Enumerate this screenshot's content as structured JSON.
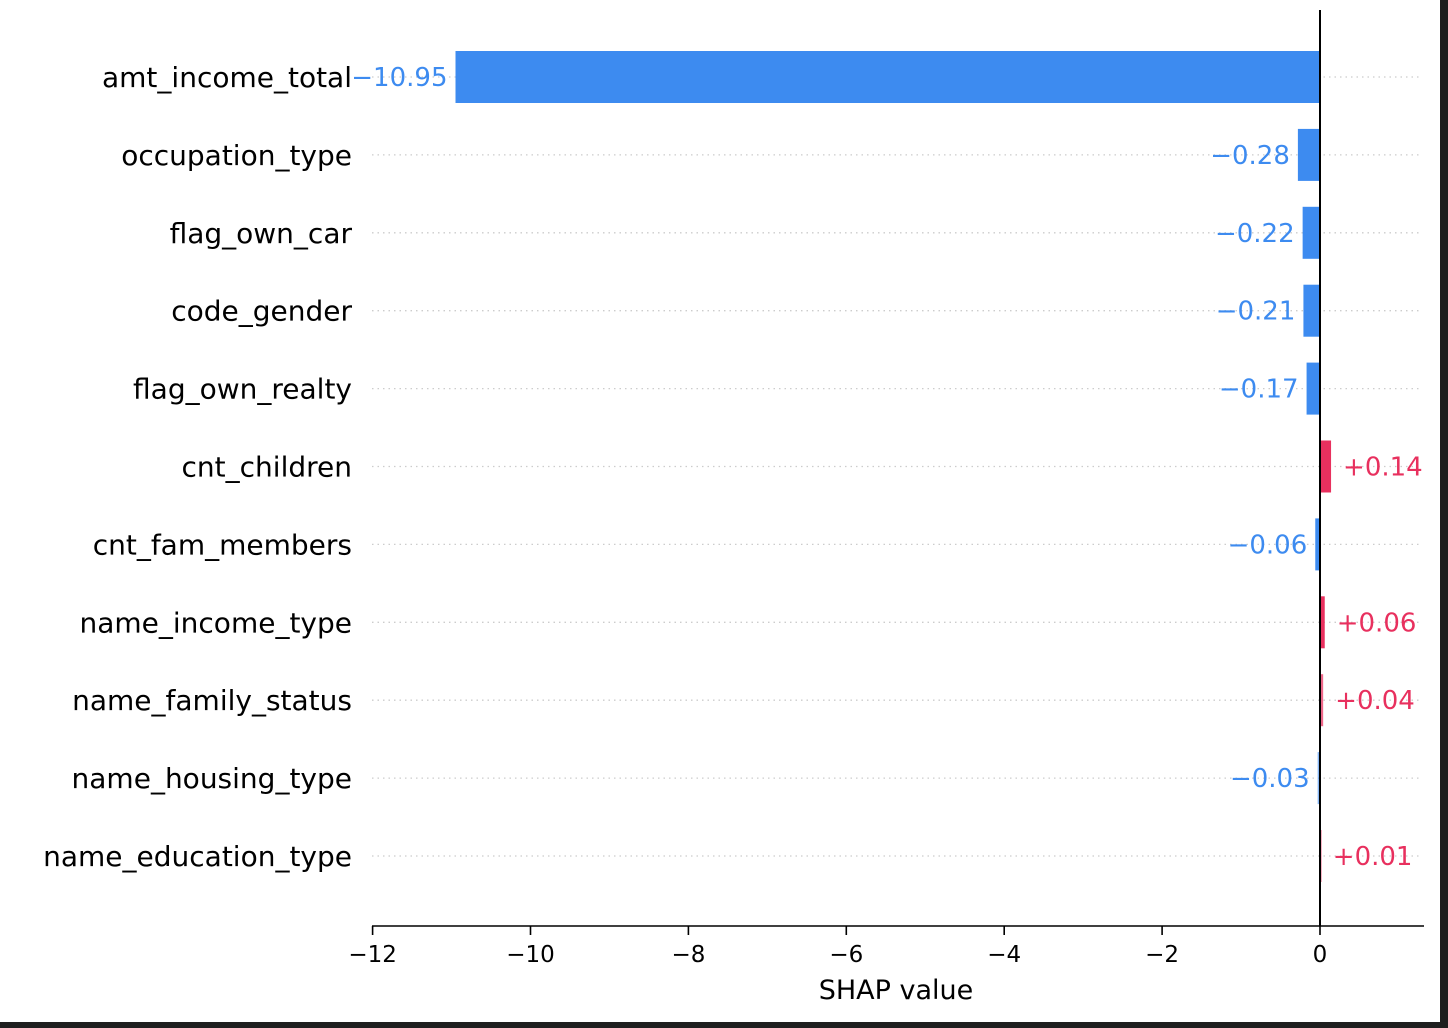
{
  "chart_data": {
    "type": "bar",
    "orientation": "horizontal",
    "categories": [
      "amt_income_total",
      "occupation_type",
      "flag_own_car",
      "code_gender",
      "flag_own_realty",
      "cnt_children",
      "cnt_fam_members",
      "name_income_type",
      "name_family_status",
      "name_housing_type",
      "name_education_type"
    ],
    "values": [
      -10.95,
      -0.28,
      -0.22,
      -0.21,
      -0.17,
      0.14,
      -0.06,
      0.06,
      0.04,
      -0.03,
      0.01
    ],
    "value_labels": [
      "−10.95",
      "−0.28",
      "−0.22",
      "−0.21",
      "−0.17",
      "+0.14",
      "−0.06",
      "+0.06",
      "+0.04",
      "−0.03",
      "+0.01"
    ],
    "xlabel": "SHAP value",
    "xlim": [
      -12.1,
      1.3
    ],
    "xticks": [
      -12,
      -10,
      -8,
      -6,
      -4,
      -2,
      0
    ],
    "xtick_labels": [
      "−12",
      "−10",
      "−8",
      "−6",
      "−4",
      "−2",
      "0"
    ],
    "grid": "horizontal dotted",
    "colors": {
      "negative": "#3d8bf0",
      "positive": "#e8305e",
      "negative_text": "#3d8bf0",
      "positive_text": "#e8305e",
      "axis": "#000000",
      "grid": "#cccccc"
    }
  }
}
